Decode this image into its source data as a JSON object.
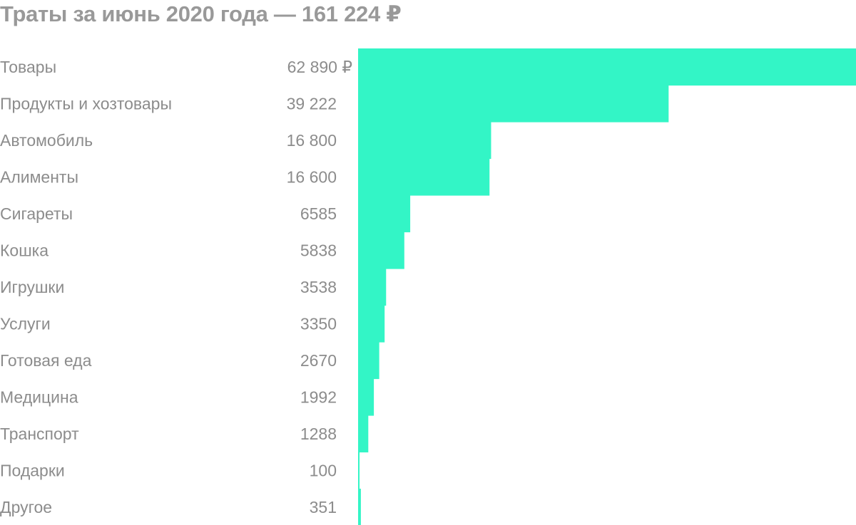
{
  "chart_data": {
    "type": "bar",
    "orientation": "horizontal",
    "title": "Траты за июнь 2020 года — 161 224 ₽",
    "color": "#33f5c6",
    "categories": [
      "Товары",
      "Продукты и хозтовары",
      "Автомобиль",
      "Алименты",
      "Сигареты",
      "Кошка",
      "Игрушки",
      "Услуги",
      "Готовая еда",
      "Медицина",
      "Транспорт",
      "Подарки",
      "Другое"
    ],
    "values": [
      62890,
      39222,
      16800,
      16600,
      6585,
      5838,
      3538,
      3350,
      2670,
      1992,
      1288,
      100,
      351
    ],
    "value_labels": [
      "62 890 ₽",
      "39 222",
      "16 800",
      "16 600",
      "6585",
      "5838",
      "3538",
      "3350",
      "2670",
      "1992",
      "1288",
      "100",
      "351"
    ],
    "xlim": [
      0,
      62890
    ],
    "grid": false,
    "legend": "none"
  }
}
